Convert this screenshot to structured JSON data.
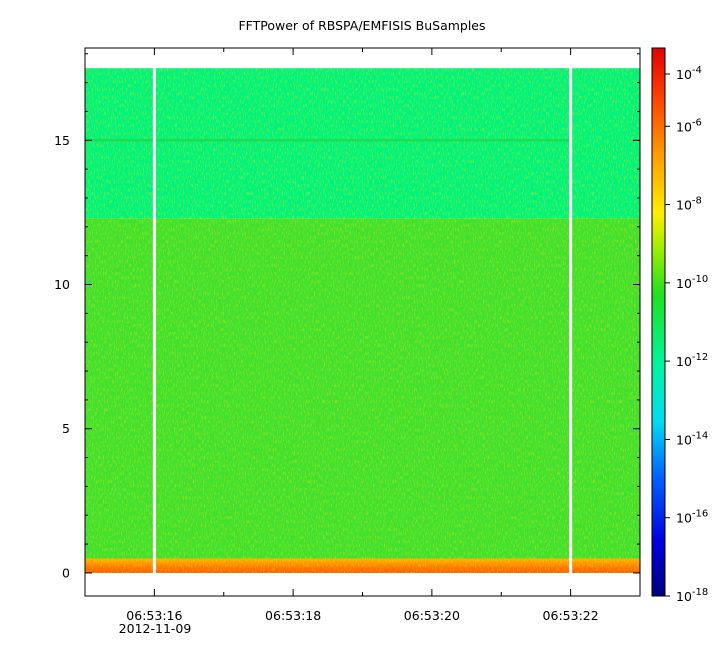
{
  "chart_data": {
    "type": "heatmap",
    "title": "FFTPower of RBSPA/EMFISIS  BuSamples",
    "xlabel": "",
    "ylabel": "",
    "x_range_seconds": [
      "06:53:15.0",
      "06:53:23.0"
    ],
    "ylim": [
      -0.8,
      18.2
    ],
    "y_ticks": [
      0,
      5,
      10,
      15
    ],
    "x_tick_labels": [
      "06:53:16",
      "06:53:18",
      "06:53:20",
      "06:53:22"
    ],
    "x_date_label": "2012-11-09",
    "data_gaps_at": [
      "06:53:16.0",
      "06:53:22.0"
    ],
    "y_data_top": 17.5,
    "bands": [
      {
        "y_from": 0,
        "y_to": 0.5,
        "level": "1e-8"
      },
      {
        "y_from": 0.5,
        "y_to": 12.3,
        "level": "1e-10"
      },
      {
        "y_from": 12.3,
        "y_to": 17.5,
        "level": "1e-12"
      }
    ],
    "line_feature": {
      "y": 15.0,
      "level": "1e-11"
    },
    "colorbar": {
      "scale": "log",
      "range": [
        "1e-18",
        "1e-4"
      ],
      "ticks": [
        {
          "base": "10",
          "exp": "-4"
        },
        {
          "base": "10",
          "exp": "-6"
        },
        {
          "base": "10",
          "exp": "-8"
        },
        {
          "base": "10",
          "exp": "-10"
        },
        {
          "base": "10",
          "exp": "-12"
        },
        {
          "base": "10",
          "exp": "-14"
        },
        {
          "base": "10",
          "exp": "-16"
        },
        {
          "base": "10",
          "exp": "-18"
        }
      ]
    }
  }
}
